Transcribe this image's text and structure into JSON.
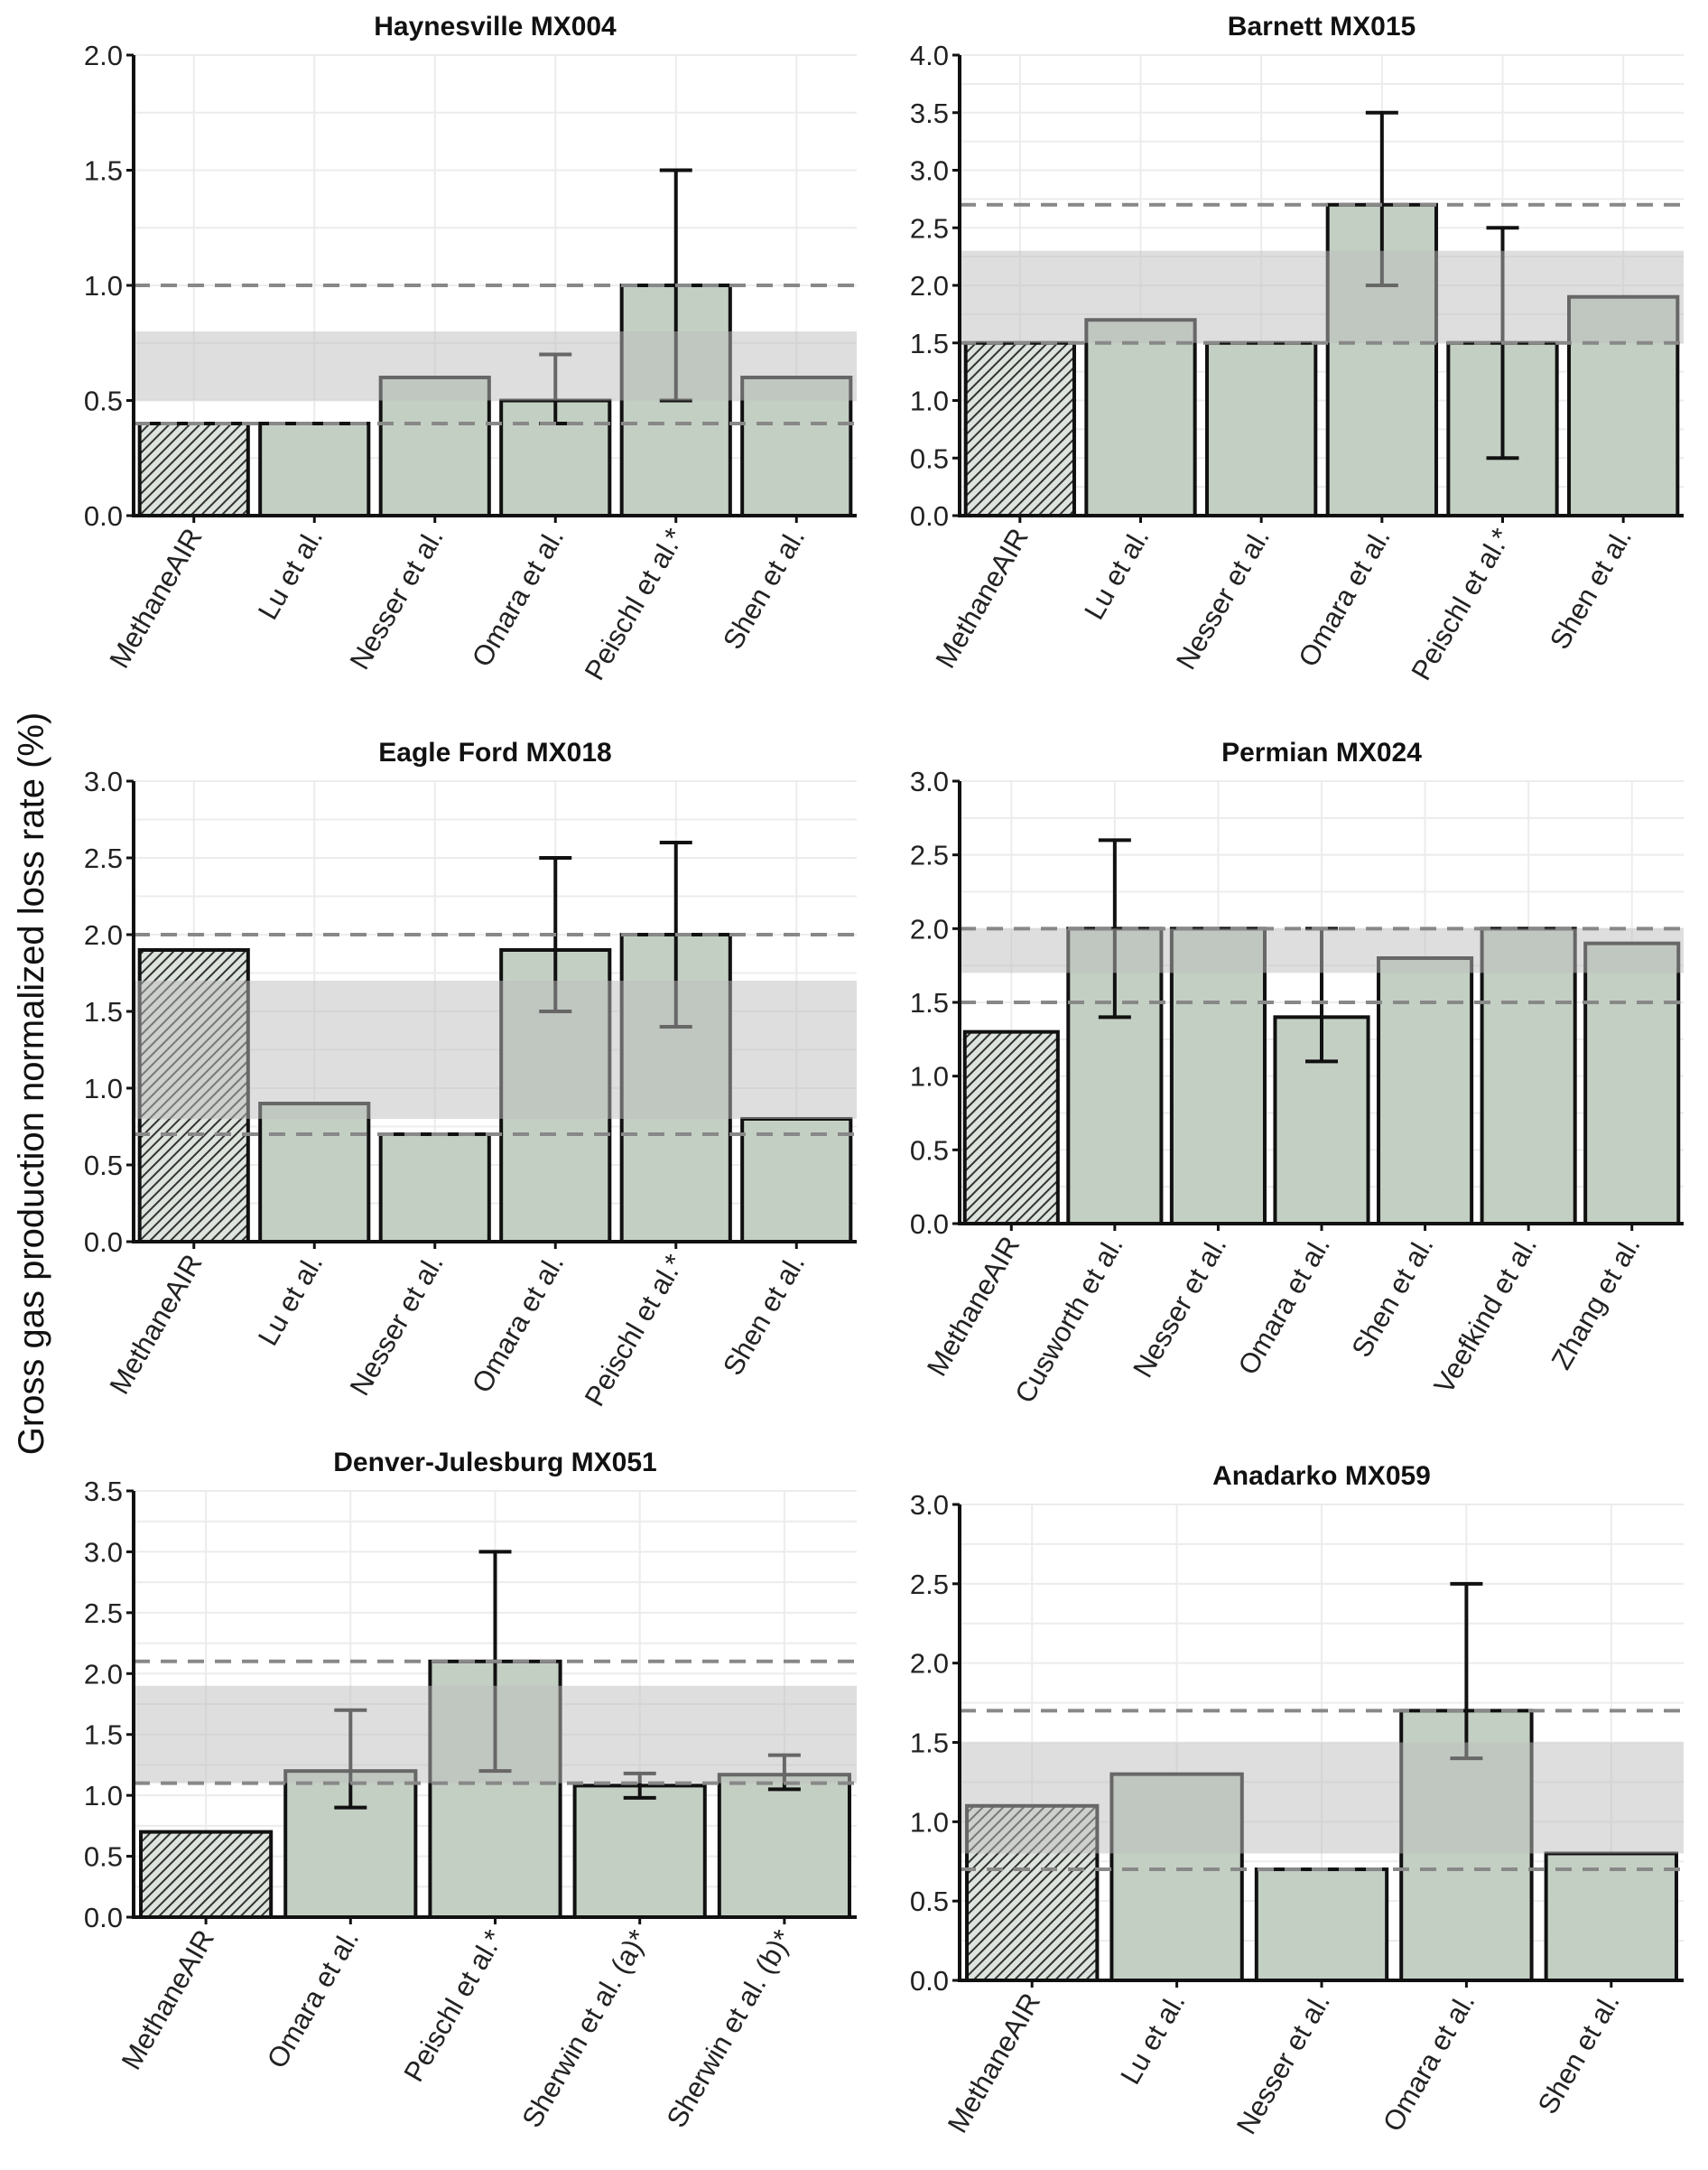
{
  "chart_data": {
    "type": "bar",
    "ylabel": "Gross gas production normalized loss rate (%)",
    "colors": {
      "bar": "#c3cfc3",
      "band": "#bdbdbd",
      "dashed": "#888888",
      "hatch": "#333333"
    },
    "panels": [
      {
        "title": "Haynesville MX004",
        "ylim": [
          0,
          2.0
        ],
        "ticks": [
          "0.0",
          "0.5",
          "1.0",
          "1.5",
          "2.0"
        ],
        "categories": [
          "MethaneAIR",
          "Lu et al.",
          "Nesser et al.",
          "Omara et al.",
          "Peischl et al.*",
          "Shen et al."
        ],
        "values": [
          0.4,
          0.4,
          0.6,
          0.5,
          1.0,
          0.6
        ],
        "errors": [
          null,
          null,
          null,
          [
            0.4,
            0.7
          ],
          [
            0.5,
            1.5
          ],
          null
        ],
        "band": [
          0.5,
          0.8
        ],
        "dashed": [
          0.4,
          1.0
        ]
      },
      {
        "title": "Barnett MX015",
        "ylim": [
          0,
          4.0
        ],
        "ticks": [
          "0.0",
          "0.5",
          "1.0",
          "1.5",
          "2.0",
          "2.5",
          "3.0",
          "3.5",
          "4.0"
        ],
        "categories": [
          "MethaneAIR",
          "Lu et al.",
          "Nesser et al.",
          "Omara et al.",
          "Peischl et al.*",
          "Shen et al."
        ],
        "values": [
          1.5,
          1.7,
          1.5,
          2.7,
          1.5,
          1.9
        ],
        "errors": [
          null,
          null,
          null,
          [
            2.0,
            3.5
          ],
          [
            0.5,
            2.5
          ],
          null
        ],
        "band": [
          1.5,
          2.3
        ],
        "dashed": [
          1.5,
          2.7
        ]
      },
      {
        "title": "Eagle Ford MX018",
        "ylim": [
          0,
          3.0
        ],
        "ticks": [
          "0.0",
          "0.5",
          "1.0",
          "1.5",
          "2.0",
          "2.5",
          "3.0"
        ],
        "categories": [
          "MethaneAIR",
          "Lu et al.",
          "Nesser et al.",
          "Omara et al.",
          "Peischl et al.*",
          "Shen et al."
        ],
        "values": [
          1.9,
          0.9,
          0.7,
          1.9,
          2.0,
          0.8
        ],
        "errors": [
          null,
          null,
          null,
          [
            1.5,
            2.5
          ],
          [
            1.4,
            2.6
          ],
          null
        ],
        "band": [
          0.8,
          1.7
        ],
        "dashed": [
          0.7,
          2.0
        ]
      },
      {
        "title": "Permian MX024",
        "ylim": [
          0,
          3.0
        ],
        "ticks": [
          "0.0",
          "0.5",
          "1.0",
          "1.5",
          "2.0",
          "2.5",
          "3.0"
        ],
        "categories": [
          "MethaneAIR",
          "Cusworth et al.",
          "Nesser et al.",
          "Omara et al.",
          "Shen et al.",
          "Veefkind et al.",
          "Zhang et al."
        ],
        "values": [
          1.3,
          2.0,
          2.0,
          1.4,
          1.8,
          2.0,
          1.9
        ],
        "errors": [
          null,
          [
            1.4,
            2.6
          ],
          null,
          [
            1.1,
            2.0
          ],
          null,
          null,
          null
        ],
        "band": [
          1.7,
          2.0
        ],
        "dashed": [
          1.5,
          2.0
        ]
      },
      {
        "title": "Denver-Julesburg MX051",
        "ylim": [
          0,
          3.5
        ],
        "ticks": [
          "0.0",
          "0.5",
          "1.0",
          "1.5",
          "2.0",
          "2.5",
          "3.0",
          "3.5"
        ],
        "categories": [
          "MethaneAIR",
          "Omara et al.",
          "Peischl et al.*",
          "Sherwin et al. (a)*",
          "Sherwin et al. (b)*"
        ],
        "values": [
          0.7,
          1.2,
          2.1,
          1.08,
          1.17
        ],
        "errors": [
          null,
          [
            0.9,
            1.7
          ],
          [
            1.2,
            3.0
          ],
          [
            0.98,
            1.18
          ],
          [
            1.05,
            1.33
          ]
        ],
        "band": [
          1.1,
          1.9
        ],
        "dashed": [
          1.1,
          2.1
        ]
      },
      {
        "title": "Anadarko MX059",
        "ylim": [
          0,
          3.0
        ],
        "ticks": [
          "0.0",
          "0.5",
          "1.0",
          "1.5",
          "2.0",
          "2.5",
          "3.0"
        ],
        "categories": [
          "MethaneAIR",
          "Lu et al.",
          "Nesser et al.",
          "Omara et al.",
          "Shen et al."
        ],
        "values": [
          1.1,
          1.3,
          0.7,
          1.7,
          0.8
        ],
        "errors": [
          null,
          null,
          null,
          [
            1.4,
            2.5
          ],
          null
        ],
        "band": [
          0.8,
          1.5
        ],
        "dashed": [
          0.7,
          1.7
        ]
      }
    ]
  }
}
